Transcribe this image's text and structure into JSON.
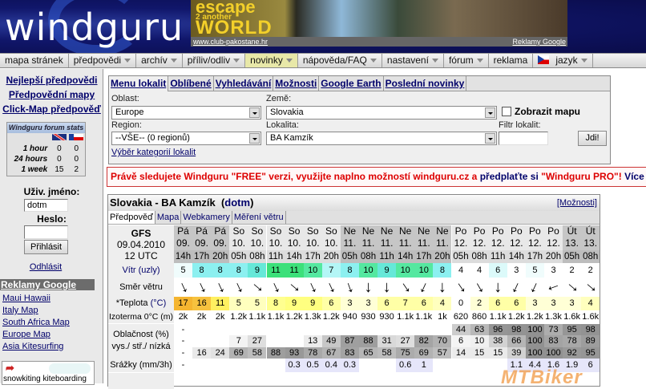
{
  "header": {
    "logo": "windguru",
    "banner": {
      "line1": "escape",
      "line2": "2 another",
      "line3": "WORLD",
      "url": "www.club-pakostane.hr",
      "ads": "Reklamy Google"
    }
  },
  "nav": [
    {
      "label": "mapa stránek",
      "dd": false
    },
    {
      "label": "předpovědi",
      "dd": true
    },
    {
      "label": "archív",
      "dd": true
    },
    {
      "label": "příliv/odliv",
      "dd": true
    },
    {
      "label": "novinky",
      "dd": true,
      "highlight": true
    },
    {
      "label": "nápověda/FAQ",
      "dd": true
    },
    {
      "label": "nastavení",
      "dd": true
    },
    {
      "label": "fórum",
      "dd": true
    },
    {
      "label": "reklama",
      "dd": false
    },
    {
      "label": "jazyk",
      "dd": true,
      "flag": true
    }
  ],
  "sidebar": {
    "links": [
      "Nejlepší předpovědi",
      "Předpovědní mapy",
      "Click-Map předpověď"
    ],
    "stats": {
      "title": "Windguru forum stats",
      "rows": [
        {
          "label": "1 hour",
          "en": "0",
          "cz": "0"
        },
        {
          "label": "24 hours",
          "en": "0",
          "cz": "0"
        },
        {
          "label": "1 week",
          "en": "15",
          "cz": "2"
        }
      ]
    },
    "username_label": "Uživ. jméno:",
    "username_value": "dotm",
    "password_label": "Heslo:",
    "login_button": "Přihlásit",
    "logout": "Odhlásit",
    "ads_title": "Reklamy Google",
    "ads": [
      "Maui Hawaii",
      "Italy Map",
      "South Africa Map",
      "Europe Map",
      "Asia Kitesurfing"
    ],
    "logos_caption": "snowkiting kiteboarding"
  },
  "spot_menu": {
    "tabs": [
      "Menu lokalit",
      "Oblíbené",
      "Vyhledávání",
      "Možnosti",
      "Google Earth",
      "Poslední novinky"
    ],
    "oblast_label": "Oblast:",
    "oblast": "Europe",
    "zeme_label": "Země:",
    "zeme": "Slovakia",
    "map_checkbox": "Zobrazit mapu",
    "map_checked": false,
    "region_label": "Region:",
    "region": "--VŠE-- (0 regionů)",
    "lokalita_label": "Lokalita:",
    "lokalita": "BA Kamzík",
    "filter_label": "Filtr lokalit:",
    "filter_value": "",
    "go_button": "Jdi!",
    "categories_link": "Výběr kategorií lokalit"
  },
  "notice": {
    "text1": "Právě sledujete Windguru \"FREE\" verzi, využijte naplno možností windguru.cz a ",
    "link1": "předplaťte si",
    "text2": " \"Windguru PRO\"! ",
    "link2": "Více info"
  },
  "forecast": {
    "title": "Slovakia - BA Kamzík",
    "user": "dotm",
    "options": "[Možnosti]",
    "tabs": [
      "Předpověď",
      "Mapa",
      "Webkamery",
      "Měření větru"
    ],
    "model": "GFS",
    "date": "09.04.2010",
    "run": "12 UTC",
    "labels": {
      "wind": "Vítr",
      "wind_unit": "(uzly)",
      "dir": "Směr větru",
      "temp": "*Teplota",
      "temp_unit": "(°C)",
      "iso": "Izoterma 0°C (m)",
      "clouds": "Oblačnost (%)",
      "clouds2": "vys./ stř./ nízká",
      "precip": "Srážky (mm/3h)"
    },
    "columns": [
      {
        "day": "Pá",
        "date": "09.",
        "hour": "14h",
        "wind": 5,
        "dir": 335,
        "temp": 17,
        "iso": "2k",
        "hi": "-",
        "mid": "-",
        "low": "-",
        "rain": "-"
      },
      {
        "day": "Pá",
        "date": "09.",
        "hour": "17h",
        "wind": 8,
        "dir": 335,
        "temp": 16,
        "iso": "2k",
        "hi": "",
        "mid": "",
        "low": "16",
        "rain": ""
      },
      {
        "day": "Pá",
        "date": "09.",
        "hour": "20h",
        "wind": 8,
        "dir": 335,
        "temp": 11,
        "iso": "2k",
        "hi": "",
        "mid": "",
        "low": "24",
        "rain": ""
      },
      {
        "day": "So",
        "date": "10.",
        "hour": "05h",
        "wind": 8,
        "dir": 335,
        "temp": 5,
        "iso": "1.2k",
        "hi": "",
        "mid": "7",
        "low": "69",
        "rain": ""
      },
      {
        "day": "So",
        "date": "10.",
        "hour": "08h",
        "wind": 9,
        "dir": 310,
        "temp": 5,
        "iso": "1.1k",
        "hi": "",
        "mid": "27",
        "low": "58",
        "rain": ""
      },
      {
        "day": "So",
        "date": "10.",
        "hour": "11h",
        "wind": 11,
        "dir": 335,
        "temp": 8,
        "iso": "1.1k",
        "hi": "",
        "mid": "",
        "low": "88",
        "rain": ""
      },
      {
        "day": "So",
        "date": "10.",
        "hour": "14h",
        "wind": 11,
        "dir": 310,
        "temp": 9,
        "iso": "1.2k",
        "hi": "",
        "mid": "",
        "low": "93",
        "rain": "0.3"
      },
      {
        "day": "So",
        "date": "10.",
        "hour": "17h",
        "wind": 10,
        "dir": 335,
        "temp": 9,
        "iso": "1.3k",
        "hi": "",
        "mid": "13",
        "low": "78",
        "rain": "0.5"
      },
      {
        "day": "So",
        "date": "10.",
        "hour": "20h",
        "wind": 7,
        "dir": 335,
        "temp": 6,
        "iso": "1.2k",
        "hi": "",
        "mid": "49",
        "low": "67",
        "rain": "0.4"
      },
      {
        "day": "Ne",
        "date": "11.",
        "hour": "05h",
        "wind": 8,
        "dir": 340,
        "temp": 3,
        "iso": "940",
        "hi": "",
        "mid": "87",
        "low": "83",
        "rain": "0.3"
      },
      {
        "day": "Ne",
        "date": "11.",
        "hour": "08h",
        "wind": 10,
        "dir": 0,
        "temp": 3,
        "iso": "930",
        "hi": "",
        "mid": "88",
        "low": "65",
        "rain": ""
      },
      {
        "day": "Ne",
        "date": "11.",
        "hour": "11h",
        "wind": 9,
        "dir": 0,
        "temp": 6,
        "iso": "930",
        "hi": "",
        "mid": "31",
        "low": "58",
        "rain": ""
      },
      {
        "day": "Ne",
        "date": "11.",
        "hour": "14h",
        "wind": 10,
        "dir": 325,
        "temp": 7,
        "iso": "1.1k",
        "hi": "",
        "mid": "27",
        "low": "75",
        "rain": "0.6"
      },
      {
        "day": "Ne",
        "date": "11.",
        "hour": "17h",
        "wind": 10,
        "dir": 25,
        "temp": 6,
        "iso": "1.1k",
        "hi": "",
        "mid": "82",
        "low": "69",
        "rain": "1"
      },
      {
        "day": "Ne",
        "date": "11.",
        "hour": "20h",
        "wind": 8,
        "dir": 0,
        "temp": 4,
        "iso": "1k",
        "hi": "",
        "mid": "70",
        "low": "57",
        "rain": ""
      },
      {
        "day": "Po",
        "date": "12.",
        "hour": "05h",
        "wind": 4,
        "dir": 325,
        "temp": 0,
        "iso": "620",
        "hi": "44",
        "mid": "6",
        "low": "14",
        "rain": ""
      },
      {
        "day": "Po",
        "date": "12.",
        "hour": "08h",
        "wind": 4,
        "dir": 330,
        "temp": 2,
        "iso": "860",
        "hi": "63",
        "mid": "10",
        "low": "15",
        "rain": ""
      },
      {
        "day": "Po",
        "date": "12.",
        "hour": "11h",
        "wind": 6,
        "dir": 0,
        "temp": 6,
        "iso": "1.1k",
        "hi": "96",
        "mid": "38",
        "low": "15",
        "rain": ""
      },
      {
        "day": "Po",
        "date": "12.",
        "hour": "14h",
        "wind": 3,
        "dir": 25,
        "temp": 6,
        "iso": "1.2k",
        "hi": "98",
        "mid": "66",
        "low": "39",
        "rain": "1.1"
      },
      {
        "day": "Po",
        "date": "12.",
        "hour": "17h",
        "wind": 5,
        "dir": 25,
        "temp": 3,
        "iso": "1.2k",
        "hi": "100",
        "mid": "100",
        "low": "100",
        "rain": "4.4"
      },
      {
        "day": "Po",
        "date": "12.",
        "hour": "20h",
        "wind": 3,
        "dir": 70,
        "temp": 3,
        "iso": "1.3k",
        "hi": "73",
        "mid": "83",
        "low": "100",
        "rain": "1.6"
      },
      {
        "day": "Út",
        "date": "13.",
        "hour": "05h",
        "wind": 2,
        "dir": 310,
        "temp": 3,
        "iso": "1.6k",
        "hi": "95",
        "mid": "78",
        "low": "92",
        "rain": "1.9"
      },
      {
        "day": "Út",
        "date": "13.",
        "hour": "08h",
        "wind": 2,
        "dir": 310,
        "temp": 4,
        "iso": "1.6k",
        "hi": "98",
        "mid": "89",
        "low": "95",
        "rain": "6"
      }
    ]
  },
  "watermark": "MTBiker",
  "colors": {
    "header_bg": "#10166a",
    "notice_red": "#dd0000",
    "link": "#00006a",
    "nav_highlight": "#e8e8a8",
    "precip_bg": "#e6e6fa"
  }
}
